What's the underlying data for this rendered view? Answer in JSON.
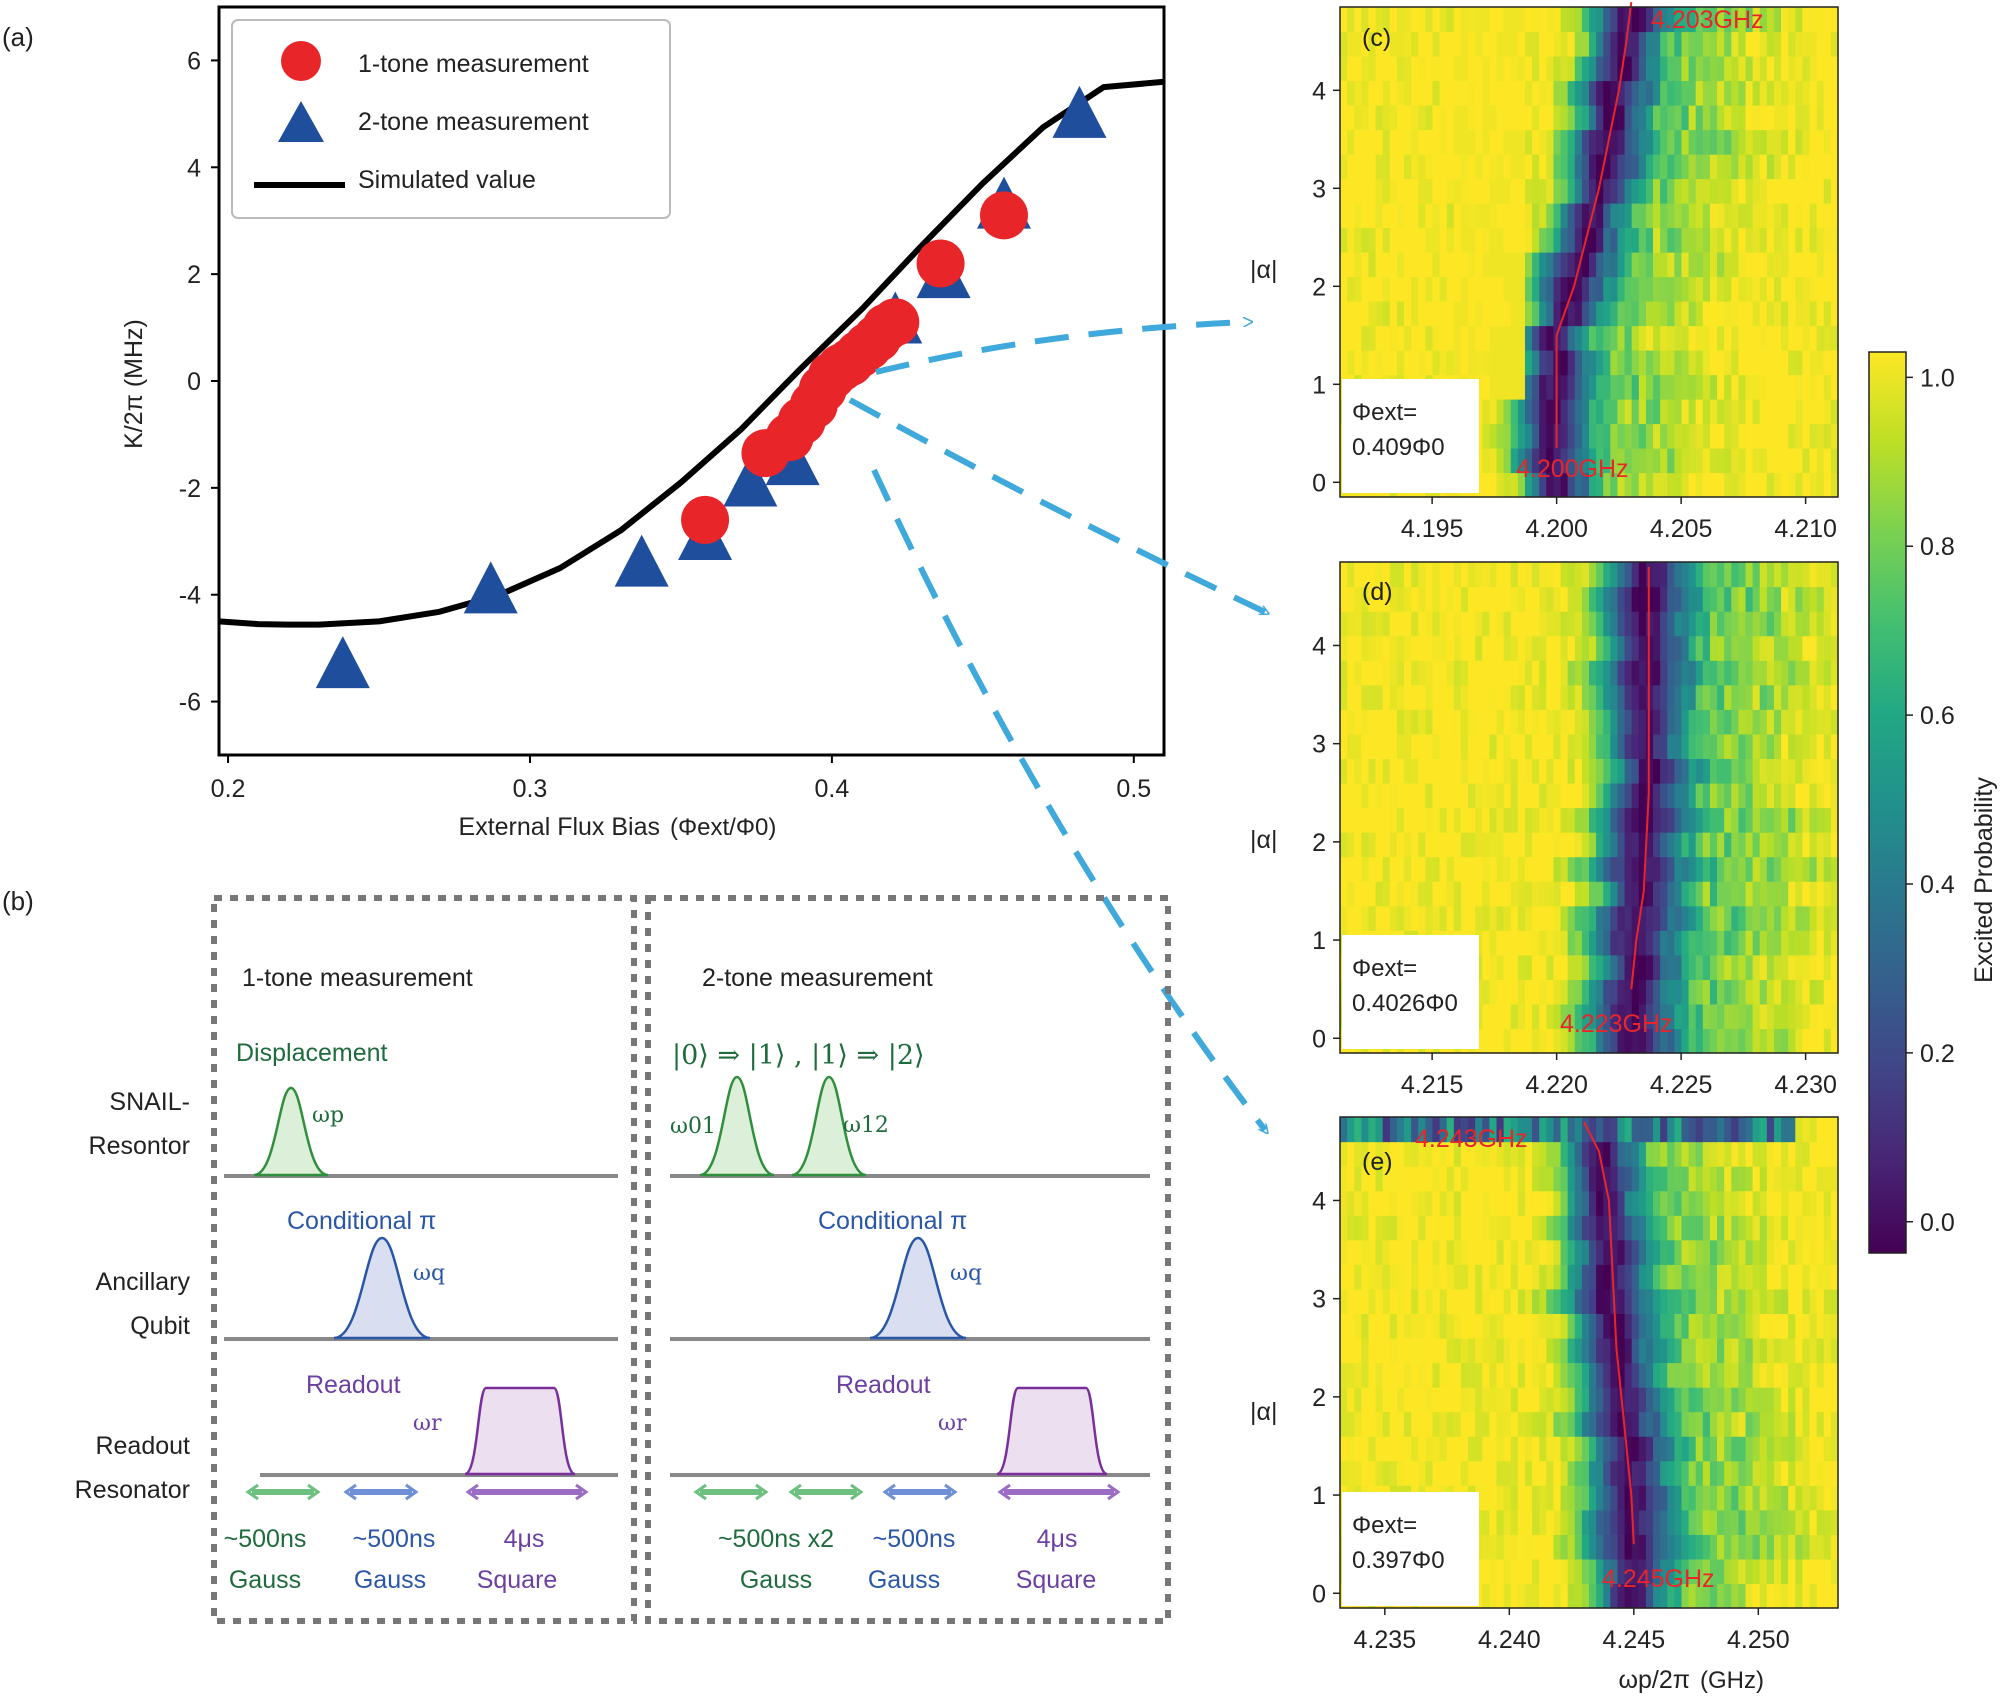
{
  "panel_labels": {
    "a": "(a)",
    "b": "(b)",
    "c": "(c)",
    "d": "(d)",
    "e": "(e)"
  },
  "chart_data": [
    {
      "id": "a",
      "type": "scatter",
      "title": "",
      "xlabel": "External Flux Bias",
      "xlabel_units": "(Φext/Φ0)",
      "ylabel": "K/2π (MHz)",
      "xlim": [
        0.197,
        0.51
      ],
      "ylim": [
        -7.0,
        7.0
      ],
      "xticks": [
        0.2,
        0.3,
        0.4,
        0.5
      ],
      "xtick_labels": [
        "0.2",
        "0.3",
        "0.4",
        "0.5"
      ],
      "yticks": [
        -6,
        -4,
        -2,
        0,
        2,
        4,
        6
      ],
      "ytick_labels": [
        "-6",
        "-4",
        "-2",
        "0",
        "2",
        "4",
        "6"
      ],
      "legend_position": "top-left",
      "series": [
        {
          "name": "1-tone measurement",
          "marker": "circle",
          "color": "#e8262a",
          "x": [
            0.358,
            0.378,
            0.386,
            0.39,
            0.394,
            0.397,
            0.4,
            0.403,
            0.406,
            0.409,
            0.412,
            0.415,
            0.418,
            0.421,
            0.436,
            0.457
          ],
          "y": [
            -2.6,
            -1.35,
            -1.05,
            -0.75,
            -0.45,
            -0.15,
            0.1,
            0.25,
            0.35,
            0.5,
            0.65,
            0.8,
            1.0,
            1.1,
            2.2,
            3.1
          ]
        },
        {
          "name": "2-tone measurement",
          "marker": "triangle",
          "color": "#1f4e9c",
          "x": [
            0.238,
            0.287,
            0.337,
            0.358,
            0.373,
            0.387,
            0.421,
            0.437,
            0.457,
            0.482
          ],
          "y": [
            -5.3,
            -3.9,
            -3.4,
            -2.9,
            -1.9,
            -1.5,
            1.15,
            2.0,
            3.3,
            5.0
          ]
        },
        {
          "name": "Simulated value",
          "marker": "line",
          "color": "#000000",
          "x": [
            0.197,
            0.21,
            0.22,
            0.23,
            0.25,
            0.27,
            0.29,
            0.31,
            0.33,
            0.35,
            0.37,
            0.39,
            0.41,
            0.43,
            0.45,
            0.47,
            0.49,
            0.51
          ],
          "y": [
            -4.5,
            -4.55,
            -4.56,
            -4.56,
            -4.5,
            -4.32,
            -4.0,
            -3.5,
            -2.8,
            -1.9,
            -0.9,
            0.25,
            1.35,
            2.55,
            3.7,
            4.75,
            5.5,
            5.6
          ]
        }
      ]
    },
    {
      "id": "c",
      "type": "heatmap",
      "xlabel": "",
      "ylabel": "|α|",
      "xlim": [
        4.1913,
        4.2113
      ],
      "ylim": [
        -0.15,
        4.85
      ],
      "xticks": [
        4.195,
        4.2,
        4.205,
        4.21
      ],
      "xtick_labels": [
        "4.195",
        "4.200",
        "4.205",
        "4.210"
      ],
      "yticks": [
        0,
        1,
        2,
        3,
        4
      ],
      "ytick_labels": [
        "0",
        "1",
        "2",
        "3",
        "4"
      ],
      "ridge_alpha": [
        0.35,
        1.0,
        1.5,
        2.0,
        2.5,
        3.0,
        3.5,
        4.0,
        4.5,
        4.9
      ],
      "ridge_freq": [
        4.2,
        4.2,
        4.2,
        4.2007,
        4.2012,
        4.2017,
        4.2021,
        4.2025,
        4.2028,
        4.203
      ],
      "ridge_width": 0.0018,
      "flux_label": "Φext=",
      "flux_value": "0.409Φ0",
      "annot_top": "4.203GHz",
      "annot_bottom": "4.200GHz"
    },
    {
      "id": "d",
      "type": "heatmap",
      "xlabel": "",
      "ylabel": "|α|",
      "xlim": [
        4.2113,
        4.2313
      ],
      "ylim": [
        -0.15,
        4.85
      ],
      "xticks": [
        4.215,
        4.22,
        4.225,
        4.23
      ],
      "xtick_labels": [
        "4.215",
        "4.220",
        "4.225",
        "4.230"
      ],
      "yticks": [
        0,
        1,
        2,
        3,
        4
      ],
      "ytick_labels": [
        "0",
        "1",
        "2",
        "3",
        "4"
      ],
      "ridge_alpha": [
        0.5,
        1.0,
        1.5,
        2.0,
        2.5,
        3.0,
        3.5,
        4.0,
        4.5,
        4.8
      ],
      "ridge_freq": [
        4.223,
        4.2232,
        4.2235,
        4.2236,
        4.2237,
        4.2237,
        4.2237,
        4.2237,
        4.2237,
        4.2237
      ],
      "ridge_width": 0.0022,
      "flux_label": "Φext=",
      "flux_value": "0.4026Φ0",
      "annot_bottom": "4.223GHz"
    },
    {
      "id": "e",
      "type": "heatmap",
      "xlabel": "ωp/2π",
      "xlabel_units": "(GHz)",
      "ylabel": "|α|",
      "xlim": [
        4.2332,
        4.2532
      ],
      "ylim": [
        -0.15,
        4.85
      ],
      "xticks": [
        4.235,
        4.24,
        4.245,
        4.25
      ],
      "xtick_labels": [
        "4.235",
        "4.240",
        "4.245",
        "4.250"
      ],
      "yticks": [
        0,
        1,
        2,
        3,
        4
      ],
      "ytick_labels": [
        "0",
        "1",
        "2",
        "3",
        "4"
      ],
      "ridge_alpha": [
        0.5,
        1.0,
        1.5,
        2.0,
        2.5,
        3.0,
        3.5,
        4.0,
        4.5,
        4.8
      ],
      "ridge_freq": [
        4.245,
        4.2449,
        4.2447,
        4.2445,
        4.2443,
        4.2442,
        4.2441,
        4.244,
        4.2436,
        4.243
      ],
      "ridge_width": 0.002,
      "flux_label": "Φext=",
      "flux_value": "0.397Φ0",
      "annot_top": "4.243GHz",
      "annot_bottom": "4.245GHz"
    },
    {
      "id": "colorbar",
      "type": "heatmap",
      "label": "Excited Probability",
      "ticks": [
        0.0,
        0.2,
        0.4,
        0.6,
        0.8,
        1.0
      ],
      "tick_labels": [
        "0.0",
        "0.2",
        "0.4",
        "0.6",
        "0.8",
        "1.0"
      ],
      "colormap": "viridis"
    }
  ],
  "panel_b": {
    "left_box": {
      "title": "1-tone measurement",
      "snail_label": "Displacement",
      "snail_freq": "ωp",
      "qubit_label": "Conditional π",
      "qubit_freq": "ωq",
      "readout_label": "Readout",
      "readout_freq": "ωr",
      "durations": [
        "~500ns",
        "~500ns",
        "4μs"
      ],
      "shapes": [
        "Gauss",
        "Gauss",
        "Square"
      ]
    },
    "right_box": {
      "title": "2-tone measurement",
      "snail_label": "|0⟩ ⇒ |1⟩ , |1⟩ ⇒ |2⟩",
      "snail_freq_1": "ω01",
      "snail_freq_2": "ω12",
      "qubit_label": "Conditional π",
      "qubit_freq": "ωq",
      "readout_label": "Readout",
      "readout_freq": "ωr",
      "durations": [
        "~500ns x2",
        "~500ns",
        "4μs"
      ],
      "shapes": [
        "Gauss",
        "Gauss",
        "Square"
      ]
    },
    "row_labels": {
      "snail_1": "SNAIL-",
      "snail_2": "Resontor",
      "qubit_1": "Ancillary",
      "qubit_2": "Qubit",
      "readout_1": "Readout",
      "readout_2": "Resonator"
    }
  }
}
